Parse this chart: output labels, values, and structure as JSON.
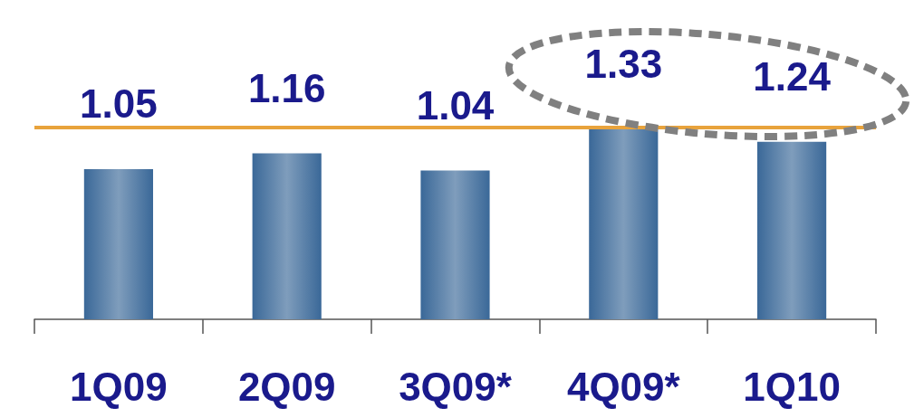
{
  "chart_data": {
    "type": "bar",
    "categories": [
      "1Q09",
      "2Q09",
      "3Q09*",
      "4Q09*",
      "1Q10"
    ],
    "values": [
      1.05,
      1.16,
      1.04,
      1.33,
      1.24
    ],
    "color": "#3a6898",
    "data_labels": true,
    "tick_labels": "x",
    "ref_lines": [
      {
        "axis": "y",
        "value": 1.34,
        "label": null,
        "color": "#e8a33c"
      }
    ]
  }
}
